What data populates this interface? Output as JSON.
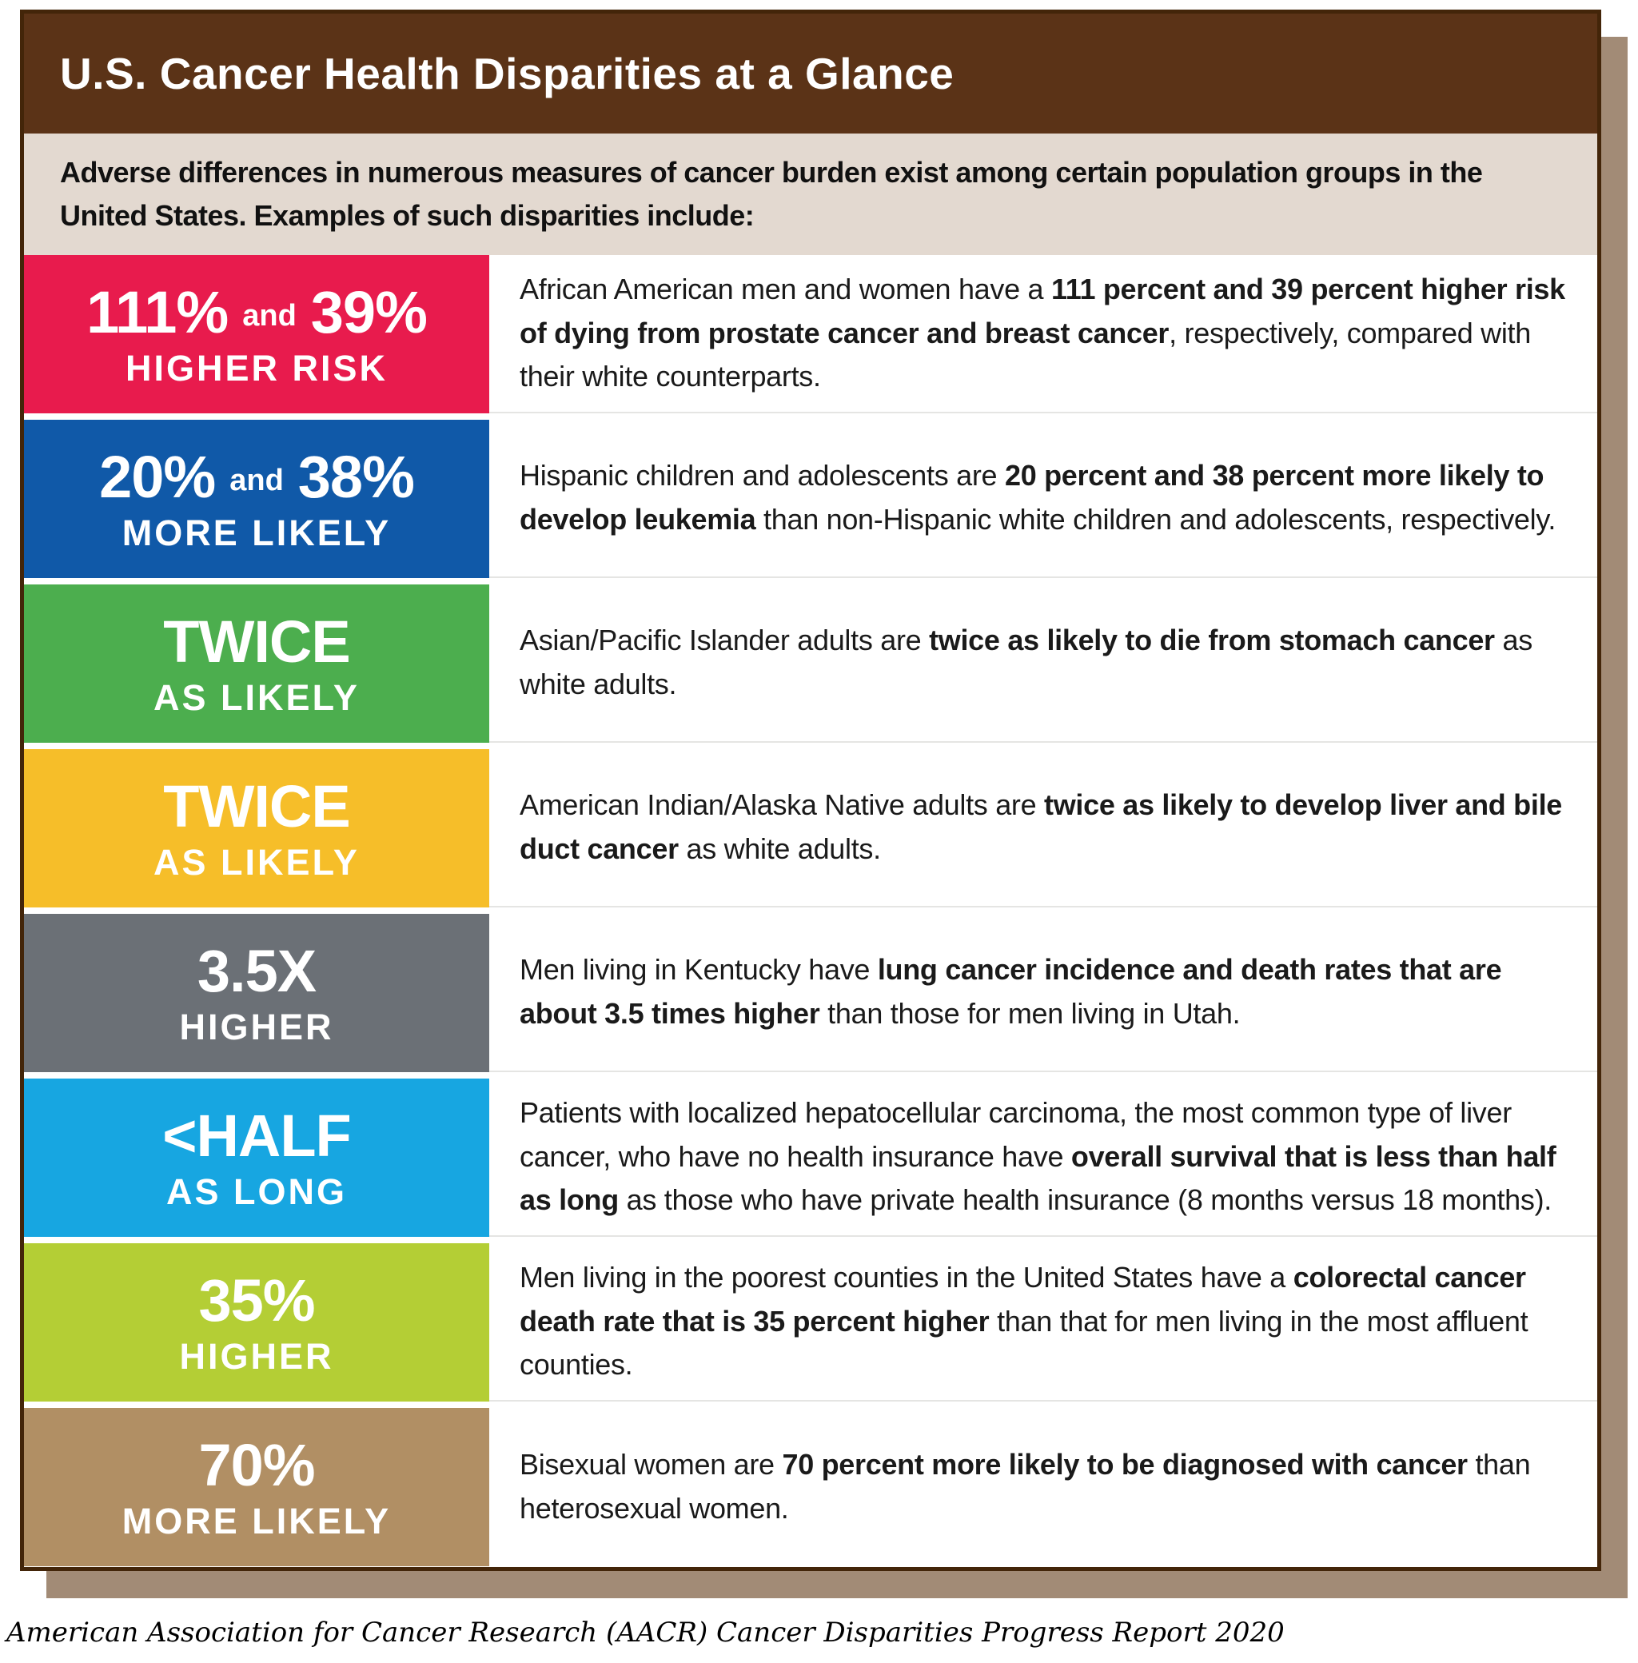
{
  "header": {
    "title": "U.S. Cancer Health Disparities at a Glance"
  },
  "intro": {
    "text": "Adverse differences in numerous measures of cancer burden exist among certain population groups in the United States. Examples of such disparities include:"
  },
  "colors": {
    "header-bg": "#5B3317",
    "intro-bg": "#E3D9D0",
    "card-border": "#432509",
    "shadow": "#A28B76",
    "divider": "#E5E5E3",
    "text-dark": "#1A1A1A"
  },
  "rows": [
    {
      "color": "#E81B4D",
      "stat": {
        "parts": [
          {
            "text": "111%",
            "size": "big"
          },
          {
            "text": "and",
            "size": "small"
          },
          {
            "text": "39%",
            "size": "big"
          }
        ],
        "label": "HIGHER RISK"
      },
      "description": [
        {
          "text": "African American men and women have a ",
          "bold": false
        },
        {
          "text": "111 percent and 39 percent higher risk of dying from prostate cancer and breast cancer",
          "bold": true
        },
        {
          "text": ", respectively, compared with their white counterparts.",
          "bold": false
        }
      ]
    },
    {
      "color": "#1059A8",
      "stat": {
        "parts": [
          {
            "text": "20%",
            "size": "big"
          },
          {
            "text": "and",
            "size": "small"
          },
          {
            "text": "38%",
            "size": "big"
          }
        ],
        "label": "MORE LIKELY"
      },
      "description": [
        {
          "text": "Hispanic children and adolescents are ",
          "bold": false
        },
        {
          "text": "20 percent and 38 percent more likely to develop leukemia",
          "bold": true
        },
        {
          "text": " than non-Hispanic white children and adolescents, respectively.",
          "bold": false
        }
      ]
    },
    {
      "color": "#4CAE4E",
      "stat": {
        "parts": [
          {
            "text": "TWICE",
            "size": "big"
          }
        ],
        "label": "AS LIKELY"
      },
      "description": [
        {
          "text": "Asian/Pacific Islander adults are ",
          "bold": false
        },
        {
          "text": "twice as likely to die from stomach cancer",
          "bold": true
        },
        {
          "text": " as white adults.",
          "bold": false
        }
      ]
    },
    {
      "color": "#F6BE29",
      "stat": {
        "parts": [
          {
            "text": "TWICE",
            "size": "big"
          }
        ],
        "label": "AS LIKELY"
      },
      "description": [
        {
          "text": "American Indian/Alaska Native adults are ",
          "bold": false
        },
        {
          "text": "twice as likely to develop liver and bile duct cancer",
          "bold": true
        },
        {
          "text": " as white adults.",
          "bold": false
        }
      ]
    },
    {
      "color": "#6B7076",
      "stat": {
        "parts": [
          {
            "text": "3.5X",
            "size": "big"
          }
        ],
        "label": "HIGHER"
      },
      "description": [
        {
          "text": "Men living in Kentucky have ",
          "bold": false
        },
        {
          "text": "lung cancer incidence and death rates that are about 3.5 times higher",
          "bold": true
        },
        {
          "text": " than those for men living in Utah.",
          "bold": false
        }
      ]
    },
    {
      "color": "#17A6E1",
      "stat": {
        "parts": [
          {
            "text": "<HALF",
            "size": "big"
          }
        ],
        "label": "AS LONG"
      },
      "description": [
        {
          "text": "Patients with localized hepatocellular carcinoma, the most common type of liver cancer, who have no health insurance have ",
          "bold": false
        },
        {
          "text": "overall survival that is less than half as long",
          "bold": true
        },
        {
          "text": " as those who have private health insurance (8 months versus 18 months).",
          "bold": false
        }
      ]
    },
    {
      "color": "#B4CE35",
      "stat": {
        "parts": [
          {
            "text": "35%",
            "size": "big"
          }
        ],
        "label": "HIGHER"
      },
      "description": [
        {
          "text": "Men living in the poorest counties in the United States have a ",
          "bold": false
        },
        {
          "text": "colorectal cancer death rate that is 35 percent higher",
          "bold": true
        },
        {
          "text": " than that for men living in the most affluent counties.",
          "bold": false
        }
      ]
    },
    {
      "color": "#B18F64",
      "stat": {
        "parts": [
          {
            "text": "70%",
            "size": "big"
          }
        ],
        "label": "MORE LIKELY"
      },
      "description": [
        {
          "text": "Bisexual women are ",
          "bold": false
        },
        {
          "text": "70 percent more likely to be diagnosed with cancer",
          "bold": true
        },
        {
          "text": " than heterosexual women.",
          "bold": false
        }
      ]
    }
  ],
  "footer": {
    "source": "American Association for Cancer Research (AACR) Cancer Disparities Progress Report 2020"
  }
}
